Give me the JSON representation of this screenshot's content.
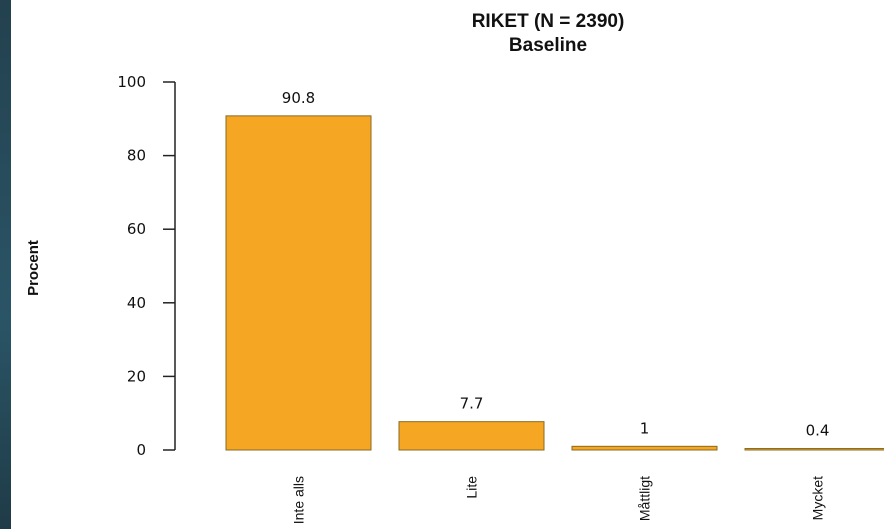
{
  "chart_data": {
    "type": "bar",
    "title": "RIKET (N = 2390)",
    "subtitle": "Baseline",
    "ylabel": "Procent",
    "xlabel": "",
    "categories": [
      "Inte alls",
      "Lite",
      "Måttligt",
      "Mycket"
    ],
    "values": [
      90.8,
      7.7,
      1,
      0.4
    ],
    "data_labels": [
      "90.8",
      "7.7",
      "1",
      "0.4"
    ],
    "ylim": [
      0,
      100
    ],
    "yticks": [
      0,
      20,
      40,
      60,
      80,
      100
    ],
    "grid": false,
    "legend": "none",
    "bar_color": "#f5a623"
  }
}
